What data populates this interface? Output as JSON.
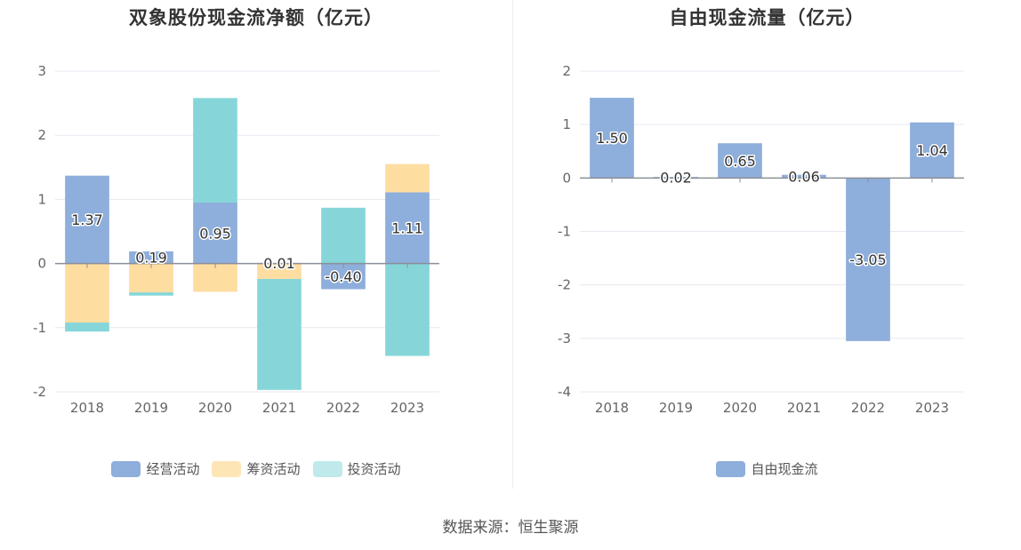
{
  "source_text": "数据来源：恒生聚源",
  "chart_data": [
    {
      "type": "bar",
      "stacked": true,
      "title": "双象股份现金流净额（亿元）",
      "categories": [
        "2018",
        "2019",
        "2020",
        "2021",
        "2022",
        "2023"
      ],
      "ylim": [
        -2,
        3
      ],
      "yticks": [
        -2,
        -1,
        0,
        1,
        2,
        3
      ],
      "grid": true,
      "legend_position": "bottom",
      "series": [
        {
          "name": "经营活动",
          "color": "#8eaedb",
          "values": [
            1.37,
            0.19,
            0.95,
            0.01,
            -0.4,
            1.11
          ]
        },
        {
          "name": "筹资活动",
          "color": "#fedda0",
          "values": [
            -0.92,
            -0.45,
            -0.44,
            -0.24,
            0.0,
            0.44
          ]
        },
        {
          "name": "投资活动",
          "color": "#86d6d9",
          "values": [
            -0.14,
            -0.05,
            1.63,
            -1.73,
            0.87,
            -1.44
          ]
        }
      ],
      "data_labels": [
        "1.37",
        "0.19",
        "0.95",
        "0.01",
        "-0.40",
        "1.11"
      ]
    },
    {
      "type": "bar",
      "title": "自由现金流量（亿元）",
      "categories": [
        "2018",
        "2019",
        "2020",
        "2021",
        "2022",
        "2023"
      ],
      "ylim": [
        -4,
        2
      ],
      "yticks": [
        -4,
        -3,
        -2,
        -1,
        0,
        1,
        2
      ],
      "grid": true,
      "legend_position": "bottom",
      "series": [
        {
          "name": "自由现金流",
          "color": "#8eaedb",
          "values": [
            1.5,
            0.02,
            0.65,
            0.06,
            -3.05,
            1.04
          ]
        }
      ],
      "data_labels": [
        "1.50",
        "0.02",
        "0.65",
        "0.06",
        "-3.05",
        "1.04"
      ]
    }
  ]
}
